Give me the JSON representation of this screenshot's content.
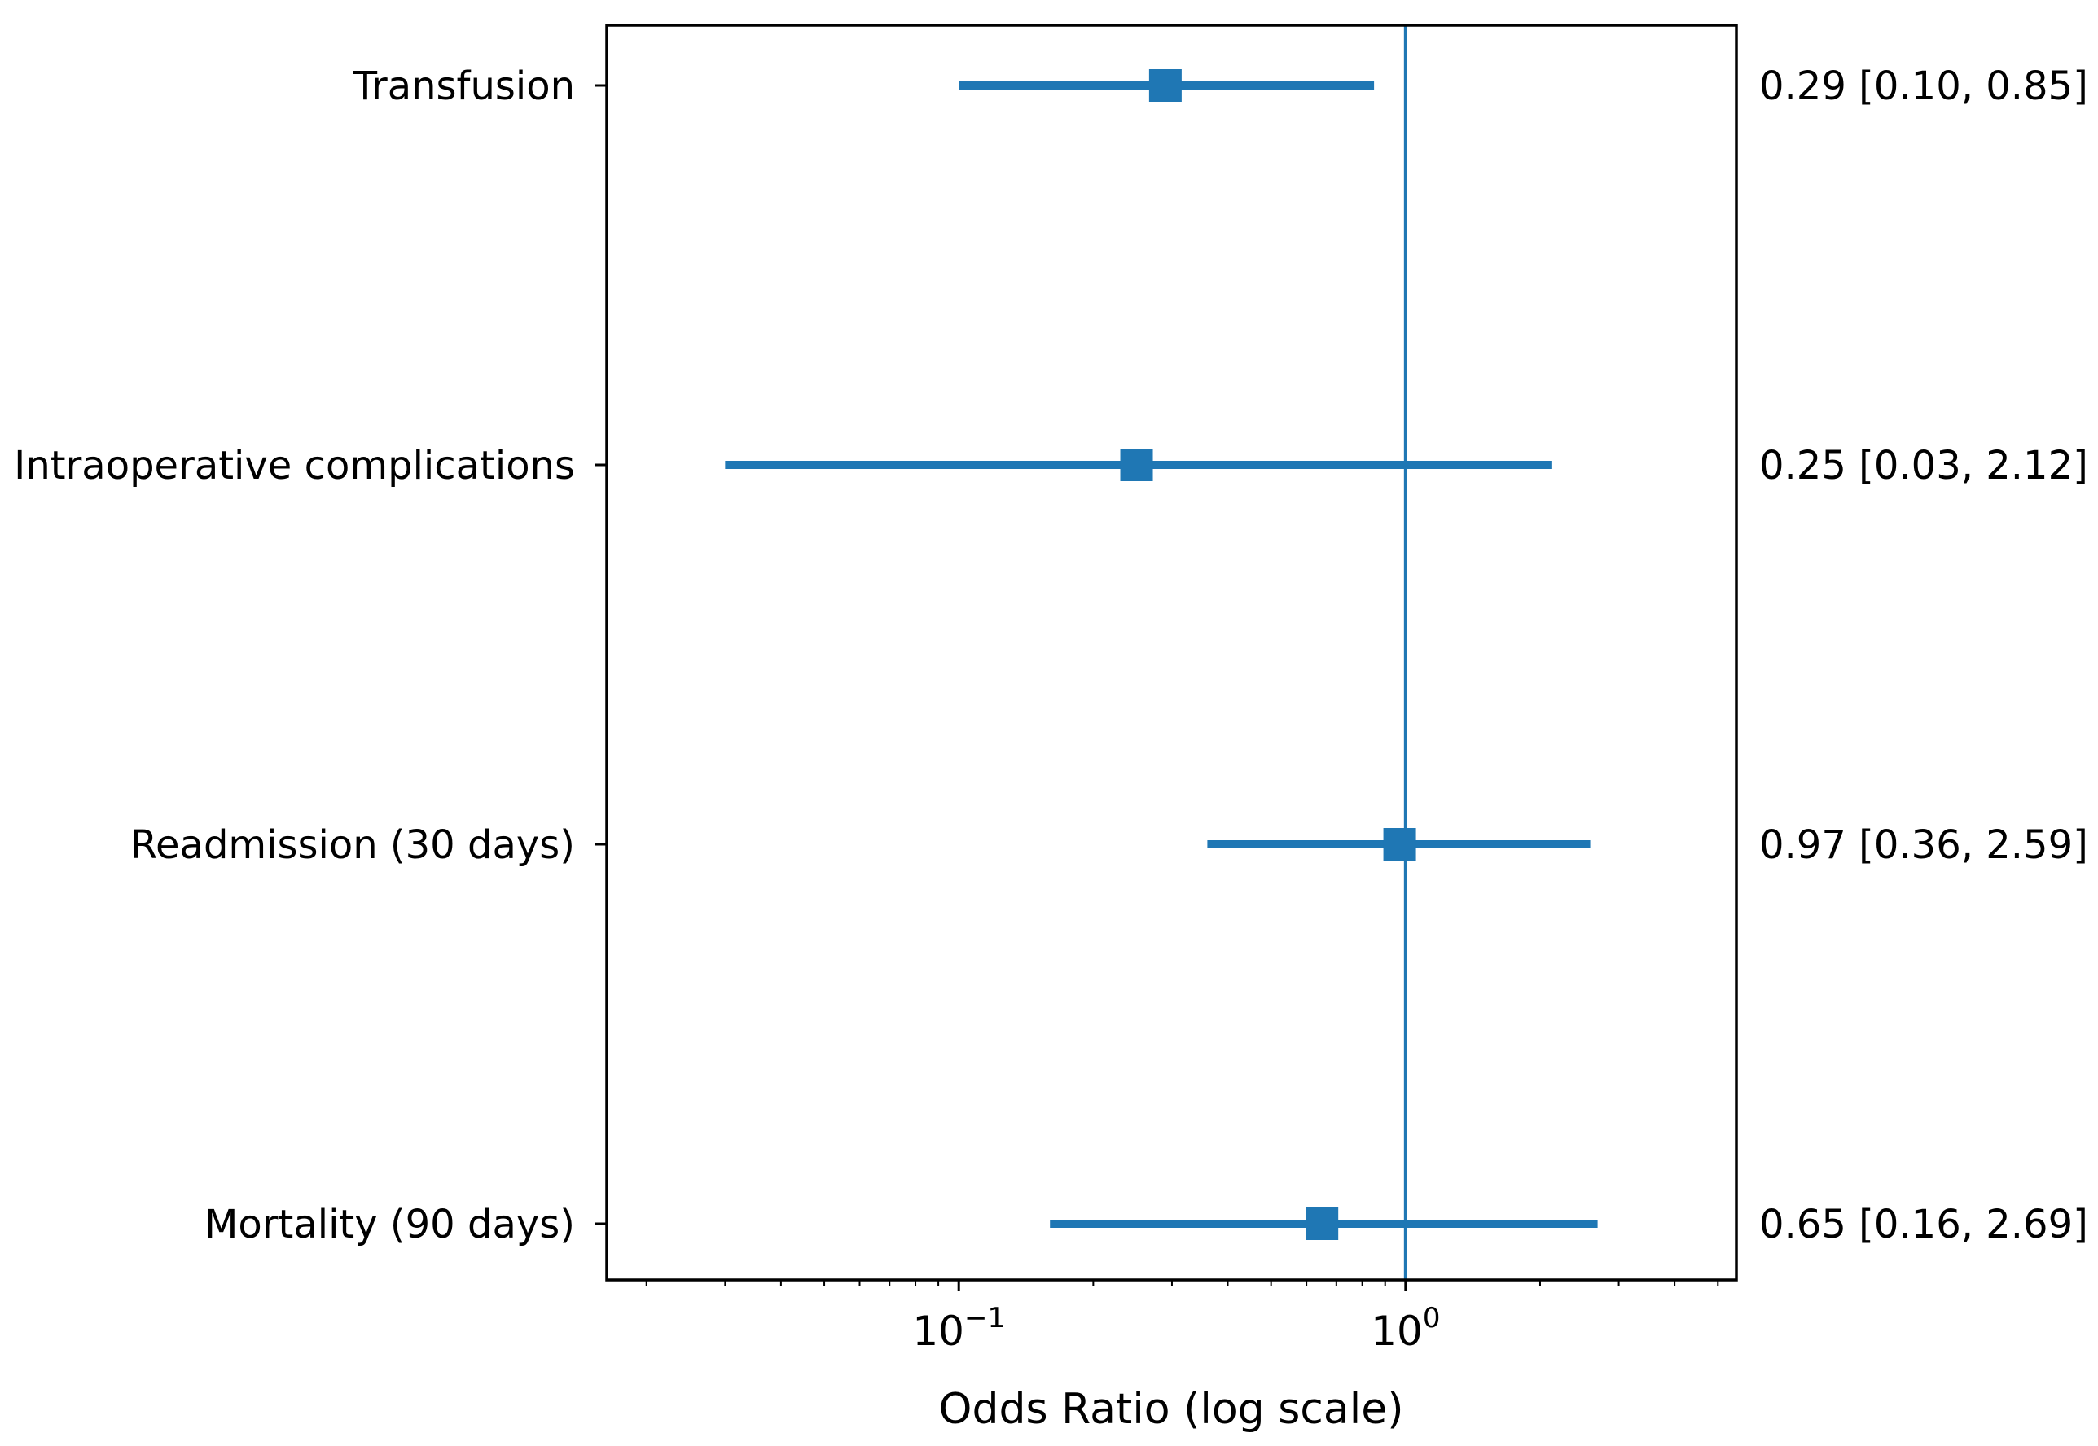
{
  "chart_data": {
    "type": "forest",
    "title": "",
    "xlabel": "Odds Ratio (log scale)",
    "ylabel": "",
    "x_scale": "log",
    "xlim": [
      0.0163,
      5.5
    ],
    "x_tick_labels": [
      {
        "value": 0.1,
        "base": "10",
        "exponent": "−1"
      },
      {
        "value": 1,
        "base": "10",
        "exponent": "0"
      }
    ],
    "reference_line": 1,
    "grid": false,
    "legend": "none",
    "color": "#1f77b4",
    "rows": [
      {
        "label": "Transfusion",
        "or": 0.29,
        "lower": 0.1,
        "upper": 0.85,
        "annotation": "0.29 [0.10, 0.85]"
      },
      {
        "label": "Intraoperative complications",
        "or": 0.25,
        "lower": 0.03,
        "upper": 2.12,
        "annotation": "0.25 [0.03, 2.12]"
      },
      {
        "label": "Readmission (30 days)",
        "or": 0.97,
        "lower": 0.36,
        "upper": 2.59,
        "annotation": "0.97 [0.36, 2.59]"
      },
      {
        "label": "Mortality (90 days)",
        "or": 0.65,
        "lower": 0.16,
        "upper": 2.69,
        "annotation": "0.65 [0.16, 2.69]"
      }
    ]
  }
}
